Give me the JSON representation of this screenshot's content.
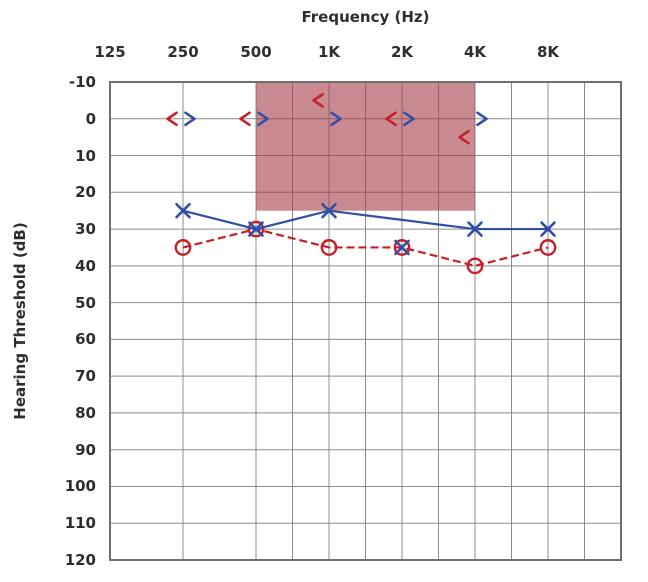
{
  "chart_data": {
    "type": "line",
    "title": "",
    "xlabel": "Frequency (Hz)",
    "ylabel": "Hearing Threshold (dB)",
    "x_tick_labels": [
      "125",
      "250",
      "500",
      "1K",
      "2K",
      "4K",
      "8K"
    ],
    "y_ticks": [
      -10,
      0,
      10,
      20,
      30,
      40,
      50,
      60,
      70,
      80,
      90,
      100,
      110,
      120
    ],
    "ylim": [
      -10,
      120
    ],
    "y_axis_inverted": true,
    "grid": "on",
    "legend": "none",
    "colors": {
      "right_ear": "#c5202a",
      "left_ear": "#3050a8",
      "shaded_region": "#a33542",
      "gridline": "#8c8c8c",
      "frame": "#6f6f6f",
      "text": "#2e2e2e"
    },
    "shaded_region": {
      "name": "highlighted-frequency-band",
      "freq_from": "500",
      "freq_to": "4K",
      "db_from": -10,
      "db_to": 25,
      "color": "#a33542",
      "opacity": 0.58
    },
    "series": [
      {
        "name": "right-ear-air-conduction",
        "marker": "circle",
        "color": "#c5202a",
        "line_style": "dashed",
        "points": [
          {
            "freq": "250",
            "db": 35
          },
          {
            "freq": "500",
            "db": 30
          },
          {
            "freq": "1K",
            "db": 35
          },
          {
            "freq": "2K",
            "db": 35
          },
          {
            "freq": "4K",
            "db": 40
          },
          {
            "freq": "8K",
            "db": 35
          }
        ]
      },
      {
        "name": "left-ear-air-conduction",
        "marker": "x",
        "color": "#3050a8",
        "line_style": "solid",
        "points": [
          {
            "freq": "250",
            "db": 25
          },
          {
            "freq": "500",
            "db": 30
          },
          {
            "freq": "1K",
            "db": 25
          },
          {
            "freq": "2K",
            "db": 35,
            "on_line": false
          },
          {
            "freq": "4K",
            "db": 30
          },
          {
            "freq": "8K",
            "db": 30
          }
        ]
      },
      {
        "name": "right-ear-bone-conduction",
        "marker": "chevron-left",
        "color": "#c5202a",
        "line_style": "none",
        "points": [
          {
            "freq": "250",
            "db": 0
          },
          {
            "freq": "500",
            "db": 0
          },
          {
            "freq": "1K",
            "db": -5
          },
          {
            "freq": "2K",
            "db": 0
          },
          {
            "freq": "4K",
            "db": 5
          }
        ]
      },
      {
        "name": "left-ear-bone-conduction",
        "marker": "chevron-right",
        "color": "#3050a8",
        "line_style": "none",
        "points": [
          {
            "freq": "250",
            "db": 0
          },
          {
            "freq": "500",
            "db": 0
          },
          {
            "freq": "1K",
            "db": 0
          },
          {
            "freq": "2K",
            "db": 0
          },
          {
            "freq": "4K",
            "db": 0
          }
        ]
      }
    ]
  }
}
